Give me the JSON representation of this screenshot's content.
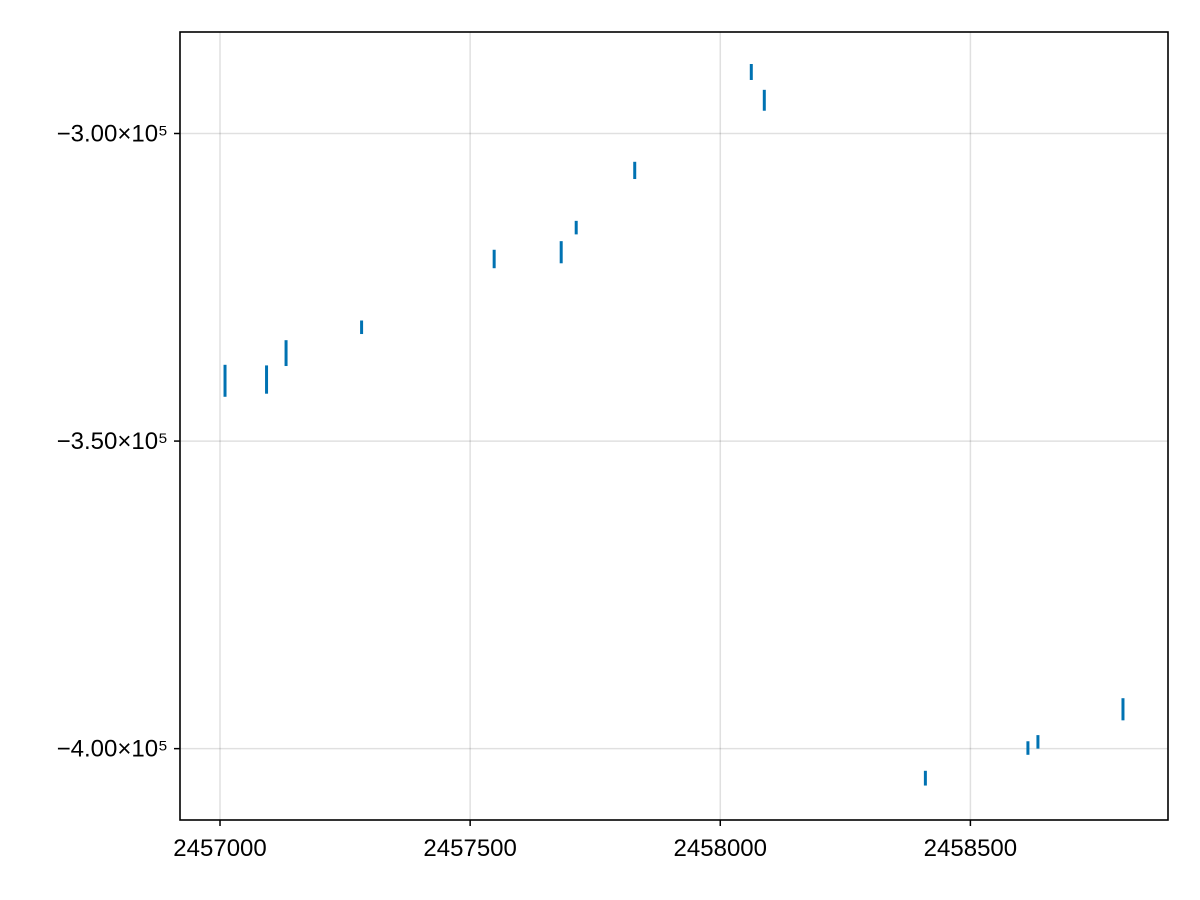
{
  "chart_data": {
    "type": "errorbar",
    "title": "",
    "xlabel": "",
    "ylabel": "",
    "xlim": [
      2456920,
      2458895
    ],
    "ylim": [
      -411600,
      -283500
    ],
    "x_ticks": [
      {
        "value": 2457000,
        "label": "2457000"
      },
      {
        "value": 2457500,
        "label": "2457500"
      },
      {
        "value": 2458000,
        "label": "2458000"
      },
      {
        "value": 2458500,
        "label": "2458500"
      }
    ],
    "y_ticks": [
      {
        "value": -300000,
        "label": "−3.00×10⁵"
      },
      {
        "value": -350000,
        "label": "−3.50×10⁵"
      },
      {
        "value": -400000,
        "label": "−4.00×10⁵"
      }
    ],
    "grid": true,
    "legend": "none",
    "series": [
      {
        "color": "#0072b2",
        "points": [
          {
            "x": 2457010,
            "y": -340200,
            "yerr": 2600
          },
          {
            "x": 2457093,
            "y": -340000,
            "yerr": 2300
          },
          {
            "x": 2457132,
            "y": -335700,
            "yerr": 2100
          },
          {
            "x": 2457283,
            "y": -331500,
            "yerr": 1100
          },
          {
            "x": 2457548,
            "y": -320400,
            "yerr": 1500
          },
          {
            "x": 2457682,
            "y": -319300,
            "yerr": 1800
          },
          {
            "x": 2457712,
            "y": -315300,
            "yerr": 1100
          },
          {
            "x": 2457829,
            "y": -306000,
            "yerr": 1400
          },
          {
            "x": 2458062,
            "y": -290000,
            "yerr": 1300
          },
          {
            "x": 2458088,
            "y": -294600,
            "yerr": 1700
          },
          {
            "x": 2458410,
            "y": -404800,
            "yerr": 1200
          },
          {
            "x": 2458615,
            "y": -399900,
            "yerr": 1100
          },
          {
            "x": 2458635,
            "y": -398900,
            "yerr": 1100
          },
          {
            "x": 2458805,
            "y": -393600,
            "yerr": 1800
          }
        ]
      }
    ]
  }
}
